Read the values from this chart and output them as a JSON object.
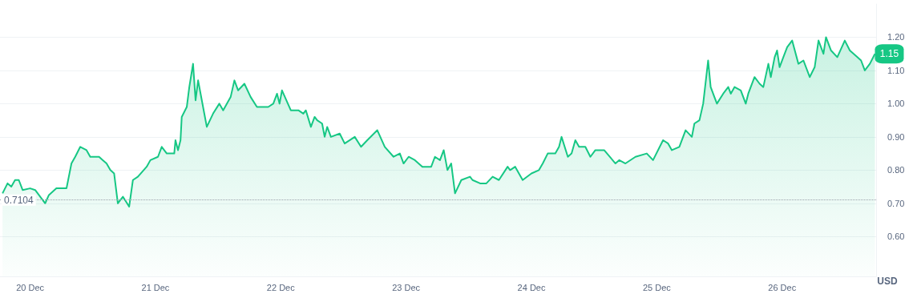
{
  "chart_data": {
    "type": "area",
    "ylabel": "USD",
    "marker": "none",
    "line_style": "solid",
    "grid": "y",
    "xlim": [
      "--12-19T18:14",
      "--12-26T18:00"
    ],
    "ylim": [
      0.48,
      1.3
    ],
    "xticks": [
      {
        "value": "--12-20",
        "label": "20 Dec"
      },
      {
        "value": "--12-21",
        "label": "21 Dec"
      },
      {
        "value": "--12-22",
        "label": "22 Dec"
      },
      {
        "value": "--12-23",
        "label": "23 Dec"
      },
      {
        "value": "--12-24",
        "label": "24 Dec"
      },
      {
        "value": "--12-25",
        "label": "25 Dec"
      },
      {
        "value": "--12-26",
        "label": "26 Dec"
      }
    ],
    "yticks": [
      {
        "value": 0.6,
        "label": "0.60"
      },
      {
        "value": 0.7,
        "label": "0.70"
      },
      {
        "value": 0.8,
        "label": "0.80"
      },
      {
        "value": 0.9,
        "label": "0.90"
      },
      {
        "value": 1.0,
        "label": "1.00"
      },
      {
        "value": 1.1,
        "label": "1.10"
      },
      {
        "value": 1.2,
        "label": "1.20"
      }
    ],
    "ref_lines": [
      {
        "axis": "y",
        "value": 0.7104,
        "label": "0.7104",
        "color": "#9aa0ab",
        "line_style": "dotted"
      }
    ],
    "annotations": [
      {
        "text": "1.15",
        "x": "--12-26T17:46",
        "y": 1.15
      }
    ],
    "series": [
      {
        "color": "#16c784",
        "x": [
          "--12-19T18:43",
          "--12-19T19:41",
          "--12-19T20:24",
          "--12-19T21:07",
          "--12-19T21:50",
          "--12-19T22:34",
          "--12-20T00:00",
          "--12-20T00:58",
          "--12-20T02:53",
          "--12-20T03:36",
          "--12-20T05:02",
          "--12-20T06:58",
          "--12-20T07:55",
          "--12-20T08:38",
          "--12-20T09:36",
          "--12-20T10:48",
          "--12-20T11:31",
          "--12-20T13:12",
          "--12-20T13:55",
          "--12-20T14:38",
          "--12-20T15:22",
          "--12-20T16:05",
          "--12-20T16:48",
          "--12-20T17:46",
          "--12-20T18:58",
          "--12-20T19:41",
          "--12-20T20:38",
          "--12-20T22:19",
          "--12-20T23:02",
          "--12-21T00:29",
          "--12-21T01:12",
          "--12-21T02:10",
          "--12-21T03:36",
          "--12-21T03:50",
          "--12-21T04:19",
          "--12-21T04:48",
          "--12-21T05:02",
          "--12-21T06:00",
          "--12-21T06:29",
          "--12-21T07:12",
          "--12-21T07:41",
          "--12-21T08:10",
          "--12-21T09:07",
          "--12-21T09:50",
          "--12-21T11:02",
          "--12-21T12:14",
          "--12-21T12:58",
          "--12-21T14:24",
          "--12-21T15:07",
          "--12-21T15:50",
          "--12-21T17:02",
          "--12-21T18:14",
          "--12-21T19:26",
          "--12-21T21:36",
          "--12-21T22:34",
          "--12-21T23:17",
          "--12-21T23:46",
          "--12-22T00:14",
          "--12-22T01:55",
          "--12-22T03:07",
          "--12-22T03:22",
          "--12-22T04:19",
          "--12-22T04:48",
          "--12-22T05:46",
          "--12-22T06:29",
          "--12-22T06:58",
          "--12-22T07:55",
          "--12-22T08:24",
          "--12-22T08:53",
          "--12-22T09:36",
          "--12-22T11:17",
          "--12-22T12:14",
          "--12-22T14:10",
          "--12-22T15:22",
          "--12-22T16:34",
          "--12-22T18:29",
          "--12-22T19:55",
          "--12-22T21:36",
          "--12-22T22:48",
          "--12-22T23:31",
          "--12-23T00:29",
          "--12-23T01:41",
          "--12-23T03:07",
          "--12-23T04:48",
          "--12-23T05:31",
          "--12-23T06:29",
          "--12-23T07:12",
          "--12-23T07:55",
          "--12-23T08:38",
          "--12-23T09:22",
          "--12-23T10:34",
          "--12-23T12:14",
          "--12-23T12:43",
          "--12-23T14:10",
          "--12-23T15:22",
          "--12-23T16:34",
          "--12-23T17:46",
          "--12-23T19:26",
          "--12-23T19:55",
          "--12-23T20:53",
          "--12-23T22:19",
          "--12-24T00:00",
          "--12-24T01:26",
          "--12-24T02:10",
          "--12-24T03:07",
          "--12-24T04:34",
          "--12-24T05:17",
          "--12-24T05:46",
          "--12-24T06:58",
          "--12-24T07:41",
          "--12-24T08:24",
          "--12-24T09:07",
          "--12-24T10:19",
          "--12-24T11:17",
          "--12-24T12:14",
          "--12-24T12:29",
          "--12-24T13:55",
          "--12-24T16:05",
          "--12-24T16:48",
          "--12-24T18:00",
          "--12-24T19:55",
          "--12-24T22:05",
          "--12-24T23:17",
          "--12-25T01:12",
          "--12-25T02:10",
          "--12-25T02:53",
          "--12-25T04:19",
          "--12-25T05:31",
          "--12-25T06:43",
          "--12-25T07:12",
          "--12-25T08:10",
          "--12-25T08:53",
          "--12-25T09:50",
          "--12-25T10:19",
          "--12-25T11:02",
          "--12-25T11:31",
          "--12-25T12:43",
          "--12-25T13:41",
          "--12-25T14:10",
          "--12-25T14:53",
          "--12-25T16:05",
          "--12-25T17:02",
          "--12-25T17:31",
          "--12-25T18:43",
          "--12-25T19:41",
          "--12-25T20:24",
          "--12-25T21:22",
          "--12-25T21:50",
          "--12-25T22:34",
          "--12-25T23:02",
          "--12-25T23:31",
          "--12-26T00:14",
          "--12-26T00:58",
          "--12-26T01:55",
          "--12-26T03:07",
          "--12-26T04:05",
          "--12-26T05:17",
          "--12-26T06:14",
          "--12-26T06:58",
          "--12-26T07:55",
          "--12-26T08:24",
          "--12-26T09:22",
          "--12-26T10:34",
          "--12-26T12:00",
          "--12-26T12:58",
          "--12-26T14:24",
          "--12-26T15:07",
          "--12-26T15:50",
          "--12-26T16:48",
          "--12-26T17:46"
        ],
        "values": [
          0.73,
          0.76,
          0.75,
          0.77,
          0.77,
          0.74,
          0.745,
          0.74,
          0.7,
          0.725,
          0.745,
          0.745,
          0.82,
          0.84,
          0.87,
          0.86,
          0.84,
          0.84,
          0.83,
          0.82,
          0.8,
          0.79,
          0.7,
          0.72,
          0.69,
          0.77,
          0.78,
          0.81,
          0.83,
          0.84,
          0.87,
          0.85,
          0.85,
          0.89,
          0.86,
          0.89,
          0.96,
          0.99,
          1.05,
          1.12,
          1.01,
          1.07,
          0.99,
          0.93,
          0.97,
          1.0,
          0.98,
          1.02,
          1.07,
          1.04,
          1.06,
          1.02,
          0.99,
          0.99,
          1.0,
          1.03,
          1.0,
          1.04,
          0.98,
          0.98,
          0.98,
          0.97,
          0.98,
          0.93,
          0.96,
          0.95,
          0.94,
          0.9,
          0.93,
          0.9,
          0.91,
          0.88,
          0.9,
          0.87,
          0.89,
          0.92,
          0.87,
          0.84,
          0.85,
          0.82,
          0.84,
          0.83,
          0.81,
          0.81,
          0.84,
          0.83,
          0.86,
          0.8,
          0.82,
          0.73,
          0.77,
          0.78,
          0.77,
          0.76,
          0.76,
          0.78,
          0.77,
          0.81,
          0.8,
          0.81,
          0.77,
          0.79,
          0.8,
          0.82,
          0.85,
          0.85,
          0.87,
          0.9,
          0.84,
          0.85,
          0.89,
          0.87,
          0.87,
          0.84,
          0.86,
          0.86,
          0.86,
          0.82,
          0.83,
          0.82,
          0.84,
          0.85,
          0.83,
          0.89,
          0.88,
          0.86,
          0.87,
          0.92,
          0.9,
          0.94,
          0.95,
          1.0,
          1.13,
          1.05,
          1.02,
          1.0,
          1.03,
          1.05,
          1.03,
          1.05,
          1.04,
          1.0,
          1.03,
          1.08,
          1.06,
          1.05,
          1.12,
          1.08,
          1.14,
          1.16,
          1.11,
          1.14,
          1.17,
          1.19,
          1.12,
          1.13,
          1.08,
          1.11,
          1.19,
          1.15,
          1.2,
          1.16,
          1.14,
          1.19,
          1.16,
          1.14,
          1.13,
          1.1,
          1.12,
          1.15
        ]
      }
    ]
  }
}
